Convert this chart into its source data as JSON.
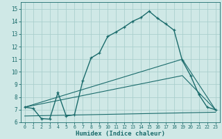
{
  "xlabel": "Humidex (Indice chaleur)",
  "bg_color": "#cfe8e6",
  "grid_color": "#aacfcd",
  "line_color": "#1a6b6b",
  "xlim": [
    -0.5,
    23.5
  ],
  "ylim": [
    6.0,
    15.5
  ],
  "series1_x": [
    0,
    1,
    2,
    3,
    4,
    5,
    6,
    7,
    8,
    9,
    10,
    11,
    12,
    13,
    14,
    15,
    16,
    17,
    18,
    19,
    20,
    21,
    22,
    23
  ],
  "series1_y": [
    7.2,
    7.1,
    6.3,
    6.25,
    8.35,
    6.5,
    6.6,
    9.3,
    11.1,
    11.5,
    12.8,
    13.15,
    13.55,
    14.0,
    14.3,
    14.8,
    14.25,
    13.8,
    13.3,
    10.9,
    9.7,
    8.2,
    7.2,
    7.0
  ],
  "series2_x": [
    0,
    19,
    23
  ],
  "series2_y": [
    7.2,
    11.0,
    7.0
  ],
  "series3_x": [
    0,
    19,
    23
  ],
  "series3_y": [
    7.2,
    9.7,
    7.0
  ],
  "series4_x": [
    0,
    23
  ],
  "series4_y": [
    6.5,
    6.8
  ],
  "yticks": [
    6,
    7,
    8,
    9,
    10,
    11,
    12,
    13,
    14,
    15
  ],
  "xticks": [
    0,
    1,
    2,
    3,
    4,
    5,
    6,
    7,
    8,
    9,
    10,
    11,
    12,
    13,
    14,
    15,
    16,
    17,
    18,
    19,
    20,
    21,
    22,
    23
  ]
}
